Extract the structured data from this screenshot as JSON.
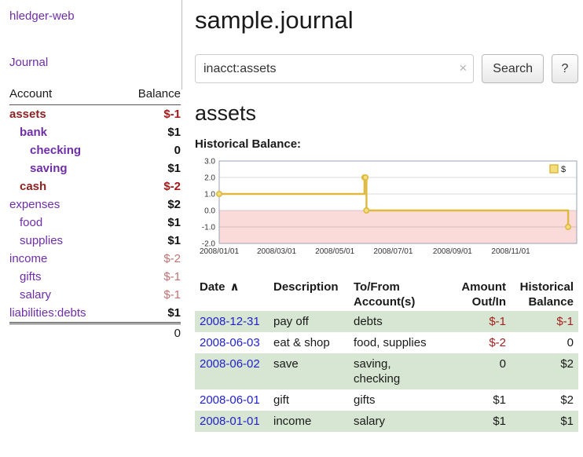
{
  "colors": {
    "link_purple": "#6f2da8",
    "account_negative_name": "#8b2323",
    "negative_amount_red": "#a81818",
    "negative_amount_light_red": "#c17272",
    "register_negative_red": "#a52020",
    "date_link_blue": "#2222cc",
    "row_stripe_green": "#d7e6d2",
    "chart_line_gold": "#ddba3d",
    "chart_negative_region_pink": "#fbdada"
  },
  "sidebar": {
    "app_title": "hledger-web",
    "journal_link": "Journal",
    "accounts": {
      "header": {
        "account": "Account",
        "balance": "Balance"
      },
      "rows": [
        {
          "name": "assets",
          "balance": "$-1",
          "indent": 0,
          "bold": true,
          "name_style": "danger",
          "balance_style": "neg"
        },
        {
          "name": "bank",
          "balance": "$1",
          "indent": 1,
          "bold": true,
          "balance_style": ""
        },
        {
          "name": "checking",
          "balance": "0",
          "indent": 2,
          "bold": true,
          "balance_style": ""
        },
        {
          "name": "saving",
          "balance": "$1",
          "indent": 2,
          "bold": true,
          "balance_style": ""
        },
        {
          "name": "cash",
          "balance": "$-2",
          "indent": 1,
          "bold": true,
          "name_style": "danger",
          "balance_style": "neg"
        },
        {
          "name": "expenses",
          "balance": "$2",
          "indent": 0,
          "balance_style": ""
        },
        {
          "name": "food",
          "balance": "$1",
          "indent": 1,
          "balance_style": ""
        },
        {
          "name": "supplies",
          "balance": "$1",
          "indent": 1,
          "balance_style": ""
        },
        {
          "name": "income",
          "balance": "$-2",
          "indent": 0,
          "balance_style": "neg-light"
        },
        {
          "name": "gifts",
          "balance": "$-1",
          "indent": 1,
          "balance_style": "neg-light"
        },
        {
          "name": "salary",
          "balance": "$-1",
          "indent": 1,
          "balance_style": "neg-light"
        },
        {
          "name": "liabilities:debts",
          "balance": "$1",
          "indent": 0,
          "balance_style": ""
        }
      ],
      "total": "0"
    }
  },
  "main": {
    "title": "sample.journal",
    "search": {
      "value": "inacct:assets",
      "clear_icon": "×",
      "search_button": "Search",
      "help_button": "?"
    },
    "account_heading": "assets",
    "section_label": "Historical Balance:"
  },
  "chart_data": {
    "type": "line",
    "step": true,
    "title": "Historical Balance",
    "legend_label": "$",
    "series": [
      {
        "name": "$",
        "points": [
          [
            "2008-01-01",
            1
          ],
          [
            "2008-06-01",
            2
          ],
          [
            "2008-06-02",
            2
          ],
          [
            "2008-06-03",
            0
          ],
          [
            "2008-12-31",
            -1
          ]
        ]
      }
    ],
    "ylim": [
      -2,
      3
    ],
    "yticks": [
      3,
      2,
      1,
      0,
      -1,
      -2
    ],
    "xtick_labels": [
      "2008/01/01",
      "2008/03/01",
      "2008/05/01",
      "2008/07/01",
      "2008/09/01",
      "2008/11/01"
    ],
    "x_range": [
      "2008-01-01",
      "2009-01-09"
    ],
    "grid": true,
    "legend_position": "top-right",
    "negative_region_fill": "#fbdada",
    "line_color": "#ddba3d",
    "marker_fill": "#f3dd7e"
  },
  "register": {
    "sort_indicator": "∧",
    "headers": [
      {
        "label": "Date"
      },
      {
        "label": "Description"
      },
      {
        "label": "To/From\nAccount(s)"
      },
      {
        "label": "Amount\nOut/In"
      },
      {
        "label": "Historical\nBalance"
      }
    ],
    "rows": [
      {
        "date": "2008-12-31",
        "description": "pay off",
        "accounts": "debts",
        "amount": "$-1",
        "balance": "$-1"
      },
      {
        "date": "2008-06-03",
        "description": "eat & shop",
        "accounts": "food, supplies",
        "amount": "$-2",
        "balance": "0"
      },
      {
        "date": "2008-06-02",
        "description": "save",
        "accounts": "saving,\nchecking",
        "amount": "0",
        "balance": "$2"
      },
      {
        "date": "2008-06-01",
        "description": "gift",
        "accounts": "gifts",
        "amount": "$1",
        "balance": "$2"
      },
      {
        "date": "2008-01-01",
        "description": "income",
        "accounts": "salary",
        "amount": "$1",
        "balance": "$1"
      }
    ]
  }
}
